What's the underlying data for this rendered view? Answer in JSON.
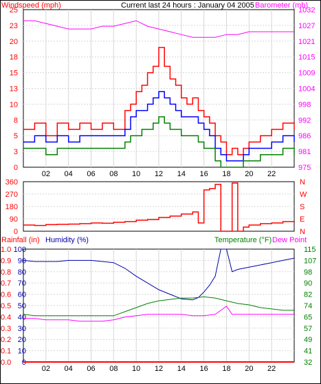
{
  "colors": {
    "wind": "#ff0000",
    "gust": "#ff0000",
    "avg": "#0000ff",
    "low": "#008000",
    "barometer": "#ff00ff",
    "humidity": "#0000aa",
    "temperature": "#008000",
    "dewpoint": "#ff00ff",
    "rainfall": "#ff0000",
    "grid": "#d6d6d6",
    "axis": "#000000",
    "frame": "#000000"
  },
  "panel_top": {
    "title": "Current last 24 hours : January 04 2005",
    "left_label": "Windspeed (mph)",
    "right_label": "Barometer (mb)"
  },
  "panel_mid": {
    "left_ticks": [
      "360",
      "270",
      "180",
      "90",
      "0"
    ],
    "right_ticks": [
      "N",
      "W",
      "S",
      "E",
      "N"
    ]
  },
  "panel_bottom": {
    "label_rain": "Rainfall (in)",
    "label_humidity": "Humidity (%)",
    "label_temperature": "Temperature (°F)",
    "label_dewpoint": "Dew Point"
  },
  "chart_data": [
    {
      "type": "line",
      "title": "Current last 24 hours : January 04 2005",
      "ylabel": "Windspeed (mph)",
      "y2label": "Barometer (mb)",
      "x_range": [
        0,
        24
      ],
      "x_ticks": [
        "02",
        "04",
        "06",
        "08",
        "10",
        "12",
        "14",
        "16",
        "18",
        "20",
        "22"
      ],
      "ylim": [
        0,
        25
      ],
      "y_ticks": [
        "0",
        "3",
        "5",
        "8",
        "10",
        "13",
        "15",
        "18",
        "20",
        "23",
        "25"
      ],
      "y2lim": [
        975,
        1032
      ],
      "y2_ticks": [
        "975",
        "981",
        "986",
        "992",
        "998",
        "1004",
        "1009",
        "1015",
        "1021",
        "1027",
        "1032"
      ],
      "series": [
        {
          "name": "",
          "role": "gust",
          "x": [
            0,
            1,
            2,
            3,
            4,
            5,
            6,
            7,
            8,
            9,
            9.5,
            10,
            10.5,
            11,
            11.5,
            12,
            12.5,
            13,
            13.5,
            14,
            14.5,
            15,
            15.5,
            16,
            16.5,
            17,
            17.5,
            18,
            18.5,
            19,
            19.5,
            20,
            21,
            22,
            23,
            24
          ],
          "values": [
            6,
            7,
            5,
            7,
            6,
            7,
            6,
            7,
            6,
            9,
            10,
            12,
            13,
            15,
            16,
            19,
            16,
            14,
            13,
            11,
            10,
            11,
            9,
            8,
            7,
            5,
            4,
            2,
            3,
            2,
            3,
            4,
            5,
            6,
            7,
            6
          ]
        },
        {
          "name": "",
          "role": "average",
          "x": [
            0,
            1,
            2,
            3,
            4,
            5,
            6,
            7,
            8,
            9,
            9.5,
            10,
            10.5,
            11,
            11.5,
            12,
            12.5,
            13,
            13.5,
            14,
            14.5,
            15,
            15.5,
            16,
            16.5,
            17,
            17.5,
            18,
            18.5,
            19,
            19.5,
            20,
            21,
            22,
            23,
            24
          ],
          "values": [
            4,
            5,
            4,
            5,
            4,
            5,
            5,
            5,
            5,
            6,
            8,
            9,
            9,
            10,
            11,
            12,
            11,
            10,
            9,
            8,
            8,
            8,
            7,
            6,
            5,
            3,
            2,
            1,
            1,
            1,
            2,
            3,
            3,
            4,
            5,
            4
          ]
        },
        {
          "name": "",
          "role": "low",
          "x": [
            0,
            1,
            2,
            3,
            4,
            5,
            6,
            7,
            8,
            9,
            9.5,
            10,
            10.5,
            11,
            11.5,
            12,
            12.5,
            13,
            13.5,
            14,
            14.5,
            15,
            15.5,
            16,
            16.5,
            17,
            17.5,
            18,
            18.5,
            19,
            19.5,
            20,
            21,
            22,
            23,
            24
          ],
          "values": [
            3,
            3,
            2,
            3,
            3,
            3,
            3,
            3,
            3,
            4,
            5,
            5,
            6,
            6,
            7,
            8,
            7,
            6,
            6,
            5,
            5,
            5,
            4,
            3,
            3,
            1,
            0,
            0,
            0,
            0,
            1,
            1,
            2,
            2,
            3,
            2
          ]
        },
        {
          "name": "",
          "role": "barometer",
          "axis": "right",
          "x": [
            0,
            1,
            2,
            3,
            4,
            5,
            6,
            7,
            8,
            9,
            10,
            11,
            12,
            13,
            14,
            15,
            16,
            17,
            18,
            19,
            20,
            21,
            22,
            23,
            24
          ],
          "values": [
            1028,
            1028,
            1027,
            1026,
            1025,
            1025,
            1025,
            1026,
            1026,
            1027,
            1028,
            1026,
            1025,
            1024,
            1023,
            1022,
            1022,
            1022,
            1023,
            1023,
            1024,
            1024,
            1024,
            1024,
            1024
          ]
        }
      ]
    },
    {
      "type": "line",
      "x_range": [
        0,
        24
      ],
      "ylim": [
        0,
        360
      ],
      "y_ticks": [
        "0",
        "90",
        "180",
        "270",
        "360"
      ],
      "y2_ticks": [
        "N",
        "E",
        "S",
        "W",
        "N"
      ],
      "series": [
        {
          "name": "",
          "role": "wind-direction",
          "x": [
            0,
            1,
            2,
            3,
            4,
            5,
            6,
            7,
            8,
            9,
            10,
            11,
            12,
            13,
            14,
            15,
            15.5,
            16,
            16.5,
            17,
            17.5,
            18,
            18.5,
            19,
            19.5,
            20,
            21,
            22,
            23,
            24
          ],
          "values": [
            45,
            42,
            48,
            50,
            52,
            55,
            60,
            58,
            65,
            70,
            80,
            85,
            100,
            110,
            125,
            140,
            60,
            300,
            310,
            340,
            0,
            0,
            350,
            0,
            30,
            45,
            55,
            60,
            70,
            65
          ]
        }
      ]
    },
    {
      "type": "line",
      "x_range": [
        0,
        24
      ],
      "x_ticks": [
        "02",
        "04",
        "06",
        "08",
        "10",
        "12",
        "14",
        "16",
        "18",
        "20",
        "22"
      ],
      "ylabel": "Rainfall (in)",
      "y_rain_ticks": [
        "0.0",
        "0.1",
        "0.2",
        "0.3",
        "0.4",
        "0.5",
        "0.6",
        "0.7",
        "0.8",
        "0.9",
        "1.0"
      ],
      "y_humidity_ticks": [
        "0",
        "10",
        "20",
        "30",
        "40",
        "50",
        "60",
        "70",
        "80",
        "90",
        "100"
      ],
      "ylim": [
        0,
        100
      ],
      "y2label": "Temperature (°F)",
      "y2lim": [
        32,
        115
      ],
      "y2_ticks": [
        "32",
        "41",
        "49",
        "57",
        "65",
        "74",
        "82",
        "90",
        "98",
        "107",
        "115"
      ],
      "series": [
        {
          "name": "Humidity (%)",
          "x": [
            0,
            1,
            2,
            3,
            4,
            5,
            6,
            7,
            8,
            9,
            10,
            11,
            12,
            13,
            14,
            15,
            15.5,
            16,
            16.5,
            17,
            17.5,
            18,
            18.5,
            19,
            20,
            21,
            22,
            23,
            24
          ],
          "values": [
            90,
            89,
            89,
            89,
            90,
            90,
            90,
            89,
            88,
            83,
            76,
            70,
            64,
            60,
            56,
            55,
            57,
            62,
            68,
            76,
            100,
            100,
            80,
            82,
            84,
            86,
            88,
            90,
            92
          ]
        },
        {
          "name": "Temperature (°F)",
          "axis": "right",
          "x": [
            0,
            1,
            2,
            3,
            4,
            5,
            6,
            7,
            8,
            9,
            10,
            11,
            12,
            13,
            14,
            15,
            16,
            17,
            18,
            19,
            20,
            21,
            22,
            23,
            24
          ],
          "values": [
            67,
            66,
            66,
            66,
            66,
            66,
            66,
            66,
            66,
            69,
            72,
            75,
            77,
            78,
            79,
            79,
            80,
            79,
            77,
            75,
            74,
            72,
            71,
            70,
            70
          ]
        },
        {
          "name": "Dew Point",
          "axis": "right",
          "x": [
            0,
            1,
            2,
            3,
            4,
            5,
            6,
            7,
            8,
            9,
            10,
            11,
            12,
            13,
            14,
            15,
            16,
            17,
            17.5,
            18,
            18.5,
            19,
            20,
            21,
            22,
            23,
            24
          ],
          "values": [
            64,
            64,
            63,
            63,
            63,
            62,
            62,
            62,
            63,
            65,
            66,
            67,
            67,
            67,
            67,
            66,
            66,
            67,
            70,
            73,
            67,
            67,
            67,
            67,
            67,
            67,
            67
          ]
        },
        {
          "name": "Rainfall (in)",
          "x": [
            0,
            24
          ],
          "values": [
            0,
            0
          ]
        }
      ]
    }
  ]
}
